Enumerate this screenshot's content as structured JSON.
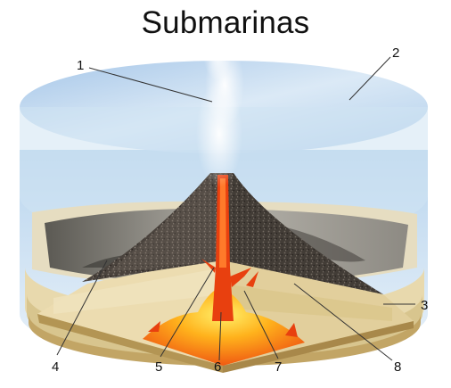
{
  "title": "Submarinas",
  "labels": [
    "1",
    "2",
    "3",
    "4",
    "5",
    "6",
    "7",
    "8"
  ],
  "colors": {
    "water": "#cfe3f2",
    "sediment": "#e8d9ad",
    "rock": "#4a433d",
    "magma": "#e8400f",
    "chamber": "#ffb21c"
  }
}
